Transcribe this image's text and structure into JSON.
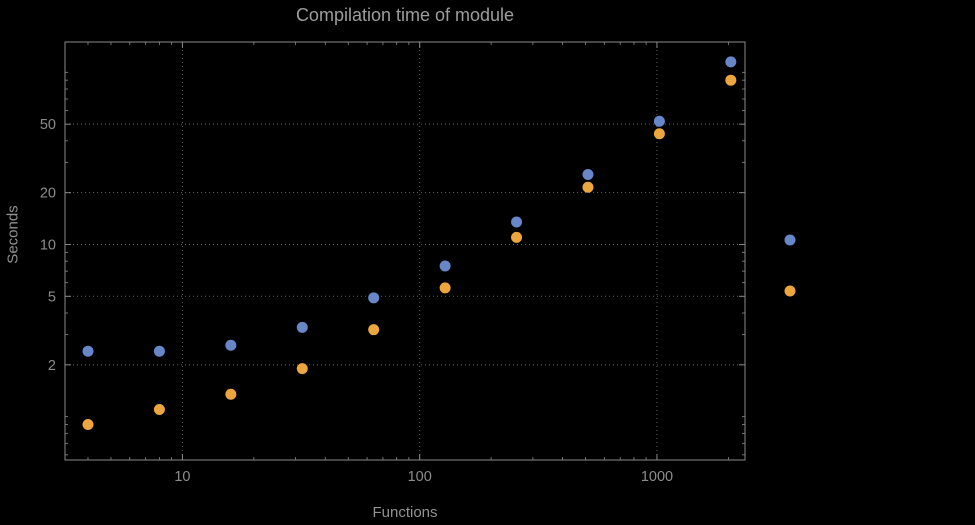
{
  "colors": {
    "background": "#000000",
    "frame": "#8a8a8a",
    "grid": "#646464",
    "title_text": "#9d9d9d",
    "tick_text": "#8c8c8c"
  },
  "chart_data": {
    "type": "scatter",
    "title": "Compilation time of module",
    "xlabel": "Functions",
    "ylabel": "Seconds",
    "x_scale": "log",
    "y_scale": "log",
    "xlim": [
      3.2,
      2350
    ],
    "ylim": [
      0.56,
      150
    ],
    "x_ticks": [
      10,
      100,
      1000
    ],
    "y_ticks": [
      2,
      5,
      10,
      20,
      50
    ],
    "grid": true,
    "legend_position": "right-outside",
    "x": [
      4,
      8,
      16,
      32,
      64,
      128,
      256,
      512,
      1024,
      2048
    ],
    "series": [
      {
        "name": "blue-series",
        "color": "#6787c8",
        "marker": "dot",
        "values": [
          2.4,
          2.4,
          2.6,
          3.3,
          4.9,
          7.5,
          13.5,
          25.5,
          52,
          115
        ]
      },
      {
        "name": "orange-series",
        "color": "#eca63d",
        "marker": "dot",
        "values": [
          0.9,
          1.1,
          1.35,
          1.9,
          3.2,
          5.6,
          11,
          21.5,
          44,
          90
        ]
      }
    ]
  }
}
